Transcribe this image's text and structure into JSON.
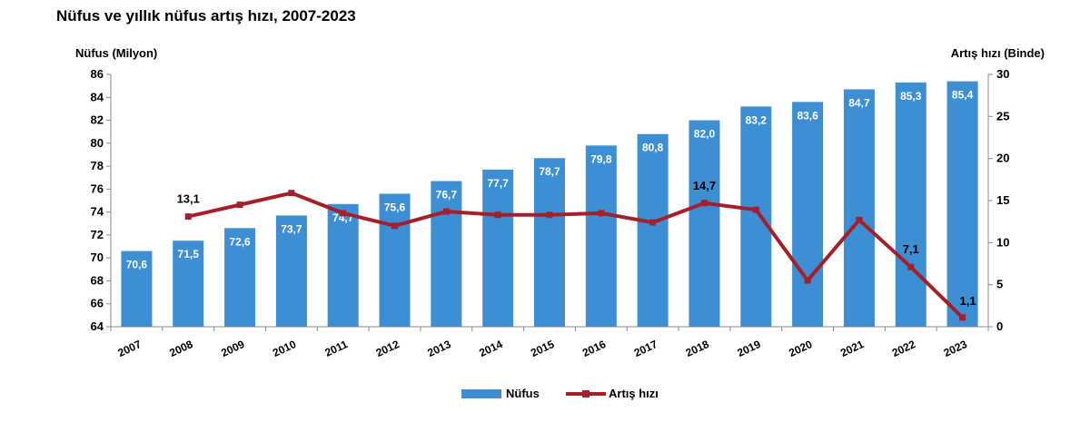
{
  "chart_data": {
    "type": "bar",
    "title": "Nüfus ve yıllık nüfus artış hızı, 2007-2023",
    "categories": [
      "2007",
      "2008",
      "2009",
      "2010",
      "2011",
      "2012",
      "2013",
      "2014",
      "2015",
      "2016",
      "2017",
      "2018",
      "2019",
      "2020",
      "2021",
      "2022",
      "2023"
    ],
    "y_left": {
      "label": "Nüfus (Milyon)",
      "ylim": [
        64,
        86
      ],
      "ticks": [
        64,
        66,
        68,
        70,
        72,
        74,
        76,
        78,
        80,
        82,
        84,
        86
      ]
    },
    "y_right": {
      "label": "Artış hızı (Binde)",
      "ylim": [
        0,
        30
      ],
      "ticks": [
        0,
        5,
        10,
        15,
        20,
        25,
        30
      ]
    },
    "series": [
      {
        "name": "Nüfus",
        "type": "bar",
        "axis": "left",
        "color": "#3D8ED3",
        "values": [
          70.6,
          71.5,
          72.6,
          73.7,
          74.7,
          75.6,
          76.7,
          77.7,
          78.7,
          79.8,
          80.8,
          82.0,
          83.2,
          83.6,
          84.7,
          85.3,
          85.4
        ],
        "labels": [
          "70,6",
          "71,5",
          "72,6",
          "73,7",
          "74,7",
          "75,6",
          "76,7",
          "77,7",
          "78,7",
          "79,8",
          "80,8",
          "82,0",
          "83,2",
          "83,6",
          "84,7",
          "85,3",
          "85,4"
        ]
      },
      {
        "name": "Artış hızı",
        "type": "line",
        "axis": "right",
        "color": "#A51F2A",
        "values": [
          null,
          13.1,
          14.5,
          15.9,
          13.5,
          12.0,
          13.7,
          13.3,
          13.3,
          13.5,
          12.4,
          14.7,
          13.9,
          5.5,
          12.7,
          7.1,
          1.1
        ],
        "labels": [
          null,
          "13,1",
          null,
          null,
          null,
          null,
          null,
          null,
          null,
          null,
          null,
          "14,7",
          null,
          null,
          null,
          "7,1",
          "1,1"
        ]
      }
    ],
    "grid": false,
    "legend_position": "bottom"
  }
}
